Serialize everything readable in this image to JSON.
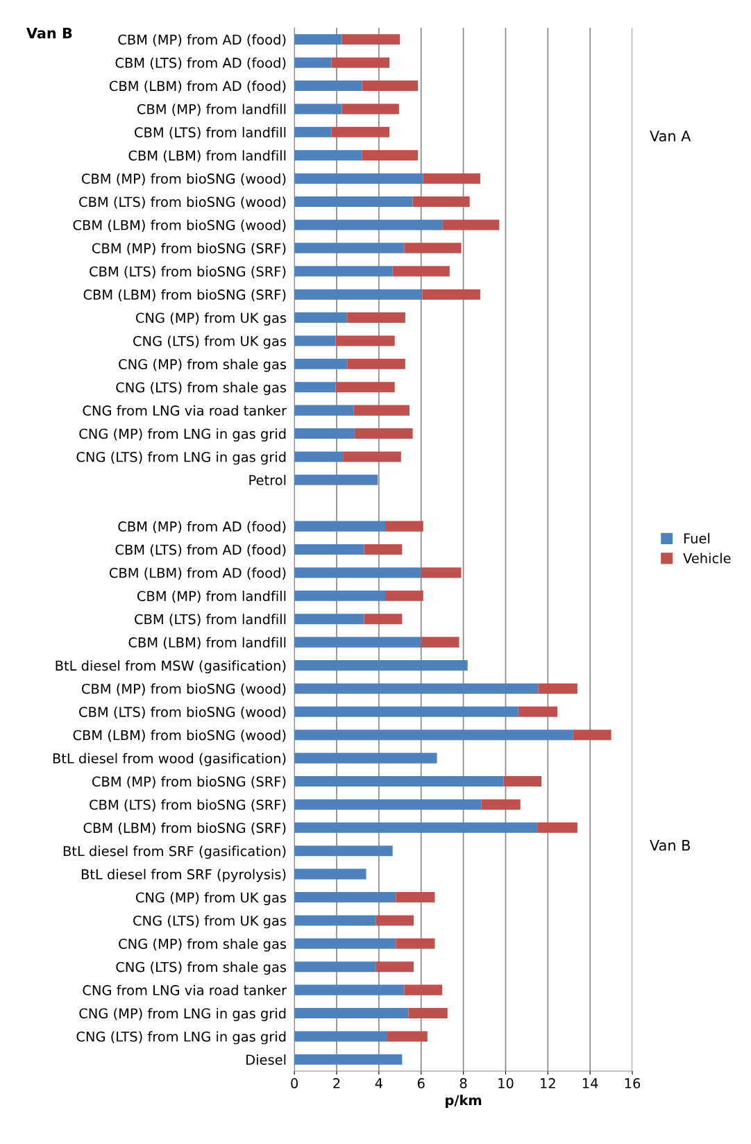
{
  "chart_data": {
    "type": "bar",
    "orientation": "horizontal",
    "stacked": true,
    "xlabel": "p/km",
    "categories": [
      "CBM (MP) from AD (food)",
      "CBM (LTS) from AD (food)",
      "CBM (LBM) from AD (food)",
      "CBM (MP) from landfill",
      "CBM (LTS) from landfill",
      "CBM (LBM) from landfill",
      "CBM (MP) from bioSNG (wood)",
      "CBM (LTS) from bioSNG (wood)",
      "CBM (LBM) from bioSNG (wood)",
      "CBM (MP) from bioSNG (SRF)",
      "CBM (LTS) from bioSNG (SRF)",
      "CBM (LBM) from bioSNG (SRF)",
      "CNG (MP) from UK gas",
      "CNG (LTS) from UK gas",
      "CNG (MP) from shale gas",
      "CNG (LTS) from shale gas",
      "CNG from LNG via road tanker",
      "CNG (MP) from LNG in gas grid",
      "CNG (LTS) from LNG in gas grid",
      "Petrol",
      null,
      "CBM (MP) from AD (food)",
      "CBM (LTS) from AD (food)",
      "CBM (LBM) from AD (food)",
      "CBM (MP) from landfill",
      "CBM (LTS) from landfill",
      "CBM (LBM) from landfill",
      "BtL diesel from MSW (gasification)",
      "CBM (MP) from bioSNG (wood)",
      "CBM (LTS) from bioSNG (wood)",
      "CBM (LBM) from bioSNG (wood)",
      "BtL diesel from wood (gasification)",
      "CBM (MP) from bioSNG (SRF)",
      "CBM (LTS) from bioSNG (SRF)",
      "CBM (LBM) from bioSNG (SRF)",
      "BtL diesel from SRF (gasification)",
      "BtL diesel from SRF (pyrolysis)",
      "CNG (MP) from UK gas",
      "CNG (LTS) from UK gas",
      "CNG (MP) from shale gas",
      "CNG (LTS) from shale gas",
      "CNG from LNG via road tanker",
      "CNG (MP) from LNG in gas grid",
      "CNG (LTS) from LNG in gas grid",
      "Diesel"
    ],
    "series": [
      {
        "name": "Fuel",
        "color": "#4f81bd",
        "values": [
          2.25,
          1.75,
          3.2,
          2.25,
          1.75,
          3.2,
          6.1,
          5.6,
          7.0,
          5.2,
          4.65,
          6.05,
          2.5,
          1.95,
          2.5,
          1.95,
          2.8,
          2.85,
          2.3,
          3.95,
          null,
          4.3,
          3.3,
          6.0,
          4.3,
          3.3,
          6.0,
          8.2,
          11.55,
          10.6,
          13.2,
          6.75,
          9.9,
          8.85,
          11.5,
          4.65,
          3.4,
          4.8,
          3.85,
          4.8,
          3.85,
          5.2,
          5.4,
          4.4,
          5.1
        ]
      },
      {
        "name": "Vehicle",
        "color": "#c0504d",
        "values": [
          2.75,
          2.75,
          2.65,
          2.7,
          2.75,
          2.65,
          2.7,
          2.7,
          2.7,
          2.7,
          2.7,
          2.75,
          2.75,
          2.8,
          2.75,
          2.8,
          2.65,
          2.75,
          2.75,
          null,
          null,
          1.8,
          1.8,
          1.9,
          1.8,
          1.8,
          1.8,
          null,
          1.85,
          1.85,
          1.8,
          null,
          1.8,
          1.85,
          1.9,
          null,
          null,
          1.85,
          1.8,
          1.85,
          1.8,
          1.8,
          1.85,
          1.9,
          null
        ]
      }
    ],
    "xlim": [
      0,
      16
    ],
    "xticks": [
      0,
      2,
      4,
      6,
      8,
      10,
      12,
      14,
      16
    ],
    "grid": "x",
    "legend": "right",
    "annotations": [
      "Van B",
      "Van A",
      "Van B"
    ]
  }
}
